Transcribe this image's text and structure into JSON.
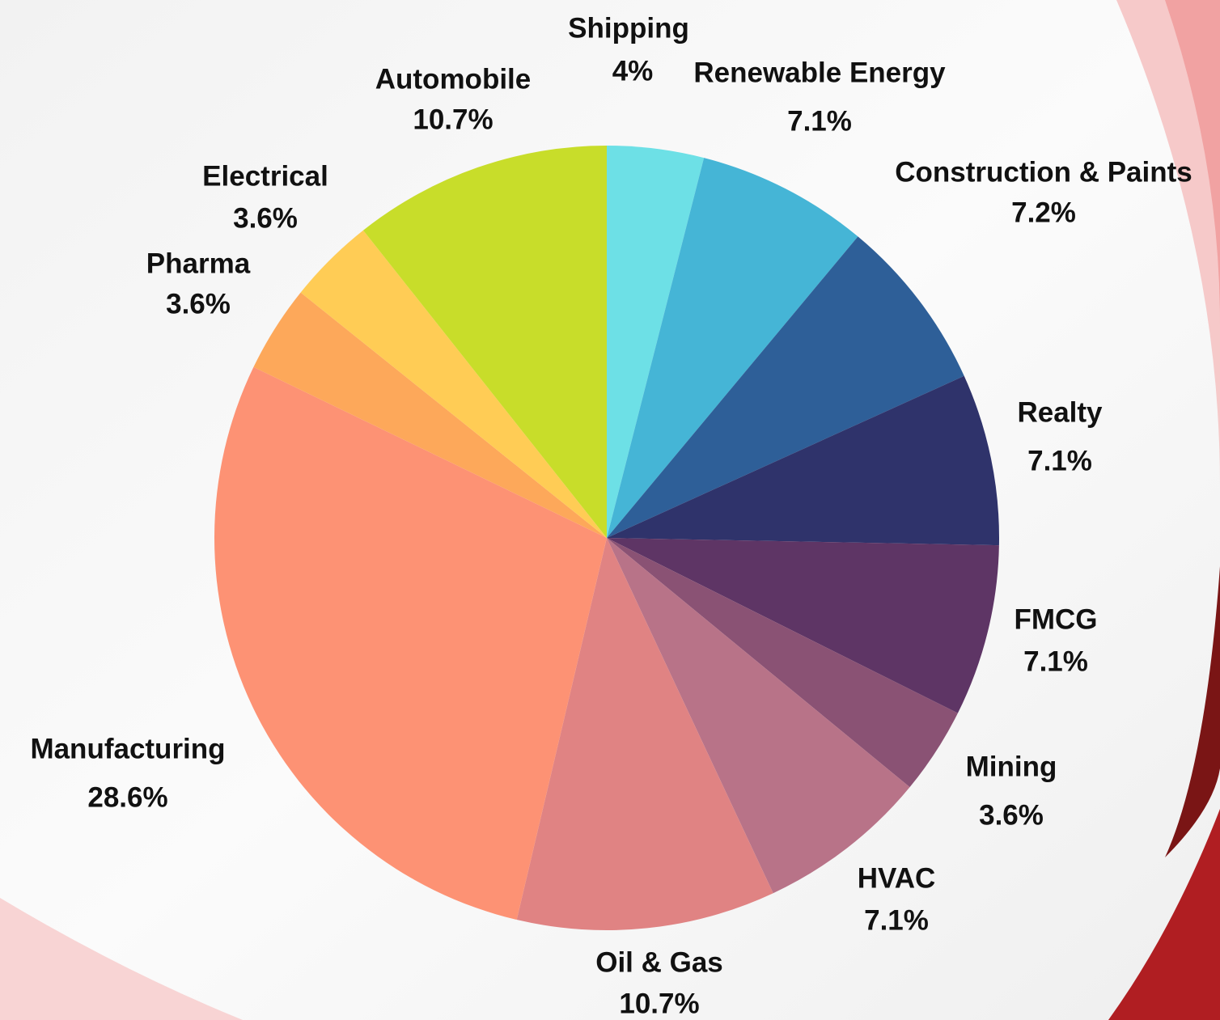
{
  "chart_data": {
    "type": "pie",
    "categories": [
      "Shipping",
      "Renewable Energy",
      "Construction & Paints",
      "Realty",
      "FMCG",
      "Mining",
      "HVAC",
      "Oil & Gas",
      "Manufacturing",
      "Pharma",
      "Electrical",
      "Automobile"
    ],
    "values": [
      4,
      7.1,
      7.2,
      7.1,
      7.1,
      3.6,
      7.1,
      10.7,
      28.6,
      3.6,
      3.6,
      10.7
    ],
    "value_labels": [
      "4%",
      "7.1%",
      "7.2%",
      "7.1%",
      "7.1%",
      "3.6%",
      "7.1%",
      "10.7%",
      "28.6%",
      "3.6%",
      "3.6%",
      "10.7%"
    ],
    "colors": [
      "#6de0e6",
      "#45b5d6",
      "#2e5f98",
      "#2f336b",
      "#5e3565",
      "#8a5274",
      "#b87388",
      "#e08383",
      "#fd9274",
      "#fda85a",
      "#ffcc55",
      "#c8dd2a"
    ]
  }
}
